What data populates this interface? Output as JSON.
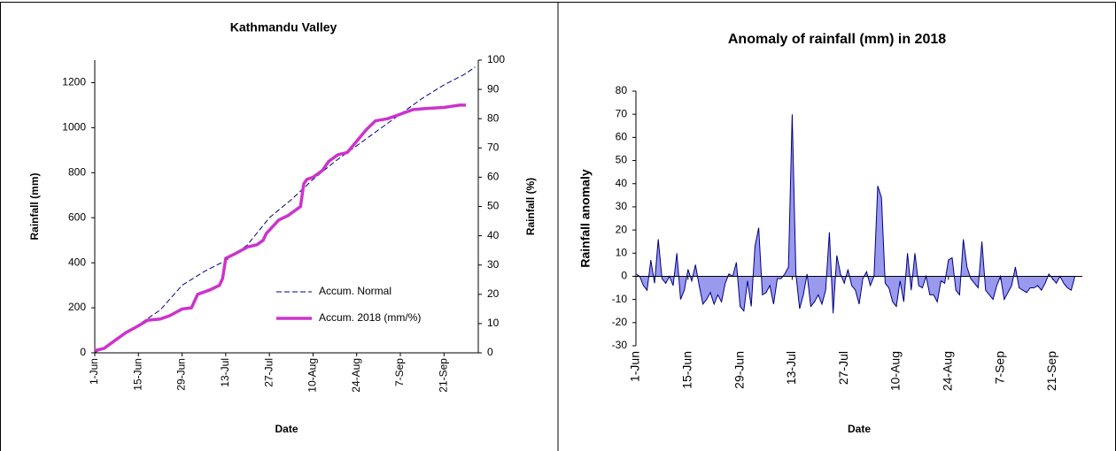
{
  "chart_data": [
    {
      "type": "line",
      "title": "Kathmandu Valley",
      "x_label": "Date",
      "y_label": "Rainfall (mm)",
      "y2_label": "Rainfall (%)",
      "xlim": [
        0,
        123
      ],
      "xticks": [
        {
          "value": 0,
          "label": "1-Jun"
        },
        {
          "value": 14,
          "label": "15-Jun"
        },
        {
          "value": 28,
          "label": "29-Jun"
        },
        {
          "value": 42,
          "label": "13-Jul"
        },
        {
          "value": 56,
          "label": "27-Jul"
        },
        {
          "value": 70,
          "label": "10-Aug"
        },
        {
          "value": 84,
          "label": "24-Aug"
        },
        {
          "value": 98,
          "label": "7-Sep"
        },
        {
          "value": 112,
          "label": "21-Sep"
        }
      ],
      "ylim": [
        0,
        1300
      ],
      "yticks": [
        0,
        200,
        400,
        600,
        800,
        1000,
        1200
      ],
      "y2lim": [
        0,
        100
      ],
      "y2ticks": [
        0,
        10,
        20,
        30,
        40,
        50,
        60,
        70,
        80,
        90,
        100
      ],
      "legend": "lower-right",
      "series": [
        {
          "name": "Accum. Normal",
          "color": "#000080",
          "style": "dashed",
          "x": [
            0,
            7,
            14,
            21,
            28,
            35,
            42,
            49,
            56,
            63,
            70,
            77,
            84,
            91,
            98,
            105,
            112,
            119,
            122
          ],
          "values": [
            0,
            55,
            125,
            190,
            300,
            360,
            410,
            480,
            600,
            680,
            770,
            850,
            920,
            990,
            1060,
            1130,
            1190,
            1240,
            1270
          ]
        },
        {
          "name": "Accum. 2018 (mm/%)",
          "color": "#cc33cc",
          "style": "solid",
          "x": [
            0,
            3,
            7,
            10,
            14,
            17,
            21,
            24,
            28,
            31,
            33,
            37,
            40,
            41,
            42,
            45,
            49,
            52,
            54,
            55,
            57,
            59,
            62,
            66,
            67,
            68,
            70,
            73,
            75,
            78,
            81,
            84,
            87,
            90,
            94,
            98,
            102,
            106,
            112,
            117,
            119
          ],
          "values": [
            10,
            20,
            60,
            90,
            120,
            145,
            150,
            165,
            195,
            200,
            260,
            280,
            300,
            330,
            420,
            440,
            470,
            480,
            500,
            530,
            560,
            590,
            610,
            650,
            750,
            770,
            780,
            810,
            850,
            880,
            890,
            940,
            990,
            1030,
            1040,
            1060,
            1080,
            1085,
            1090,
            1100,
            1100
          ]
        }
      ]
    },
    {
      "type": "area",
      "title": "Anomaly of rainfall (mm) in 2018",
      "x_label": "Date",
      "y_label": "Rainfall anomaly",
      "xlim": [
        0,
        120
      ],
      "xticks": [
        {
          "value": 0,
          "label": "1-Jun"
        },
        {
          "value": 14,
          "label": "15-Jun"
        },
        {
          "value": 28,
          "label": "29-Jun"
        },
        {
          "value": 42,
          "label": "13-Jul"
        },
        {
          "value": 56,
          "label": "27-Jul"
        },
        {
          "value": 70,
          "label": "10-Aug"
        },
        {
          "value": 84,
          "label": "24-Aug"
        },
        {
          "value": 98,
          "label": "7-Sep"
        },
        {
          "value": 112,
          "label": "21-Sep"
        }
      ],
      "ylim": [
        -30,
        80
      ],
      "yticks": [
        -30,
        -20,
        -10,
        0,
        10,
        20,
        30,
        40,
        50,
        60,
        70,
        80
      ],
      "series": [
        {
          "color": "#9999ee",
          "line_color": "#000080",
          "x": [
            0,
            1,
            2,
            3,
            4,
            5,
            6,
            7,
            8,
            9,
            10,
            11,
            12,
            13,
            14,
            15,
            16,
            17,
            18,
            19,
            20,
            21,
            22,
            23,
            24,
            25,
            26,
            27,
            28,
            29,
            30,
            31,
            32,
            33,
            34,
            35,
            36,
            37,
            38,
            39,
            40,
            41,
            42,
            43,
            44,
            45,
            46,
            47,
            48,
            49,
            50,
            51,
            52,
            53,
            54,
            55,
            56,
            57,
            58,
            59,
            60,
            61,
            62,
            63,
            64,
            65,
            66,
            67,
            68,
            69,
            70,
            71,
            72,
            73,
            74,
            75,
            76,
            77,
            78,
            79,
            80,
            81,
            82,
            83,
            84,
            85,
            86,
            87,
            88,
            89,
            90,
            91,
            92,
            93,
            94,
            95,
            96,
            97,
            98,
            99,
            100,
            101,
            102,
            103,
            104,
            105,
            106,
            107,
            108,
            109,
            110,
            111,
            112,
            113,
            114,
            115,
            116,
            117,
            118,
            119
          ],
          "values": [
            1,
            0,
            -4,
            -6,
            7,
            -3,
            16,
            -1,
            -3,
            0,
            -4,
            10,
            -10,
            -6,
            3,
            -2,
            5,
            -4,
            -12,
            -10,
            -7,
            -12,
            -8,
            -11,
            -3,
            1,
            0,
            6,
            -13,
            -15,
            -2,
            -13,
            13,
            21,
            -8,
            -7,
            -4,
            -12,
            -1,
            -1,
            1,
            4,
            70,
            1,
            -14,
            -8,
            1,
            -13,
            -11,
            -8,
            -12,
            -6,
            19,
            -16,
            9,
            1,
            -3,
            3,
            -4,
            -6,
            -12,
            -1,
            2,
            -4,
            0,
            39,
            34,
            -3,
            -5,
            -11,
            -13,
            -2,
            -11,
            10,
            -6,
            10,
            -4,
            -5,
            0,
            -8,
            -8,
            -11,
            -2,
            -3,
            7,
            8,
            -6,
            -8,
            16,
            4,
            -1,
            -3,
            -5,
            15,
            -6,
            -8,
            -10,
            -4,
            0,
            -10,
            -7,
            -4,
            4,
            -5,
            -6,
            -7,
            -5,
            -5,
            -4,
            -6,
            -3,
            1,
            -1,
            -3,
            0,
            -3,
            -5,
            -6,
            0,
            0
          ]
        }
      ]
    }
  ]
}
